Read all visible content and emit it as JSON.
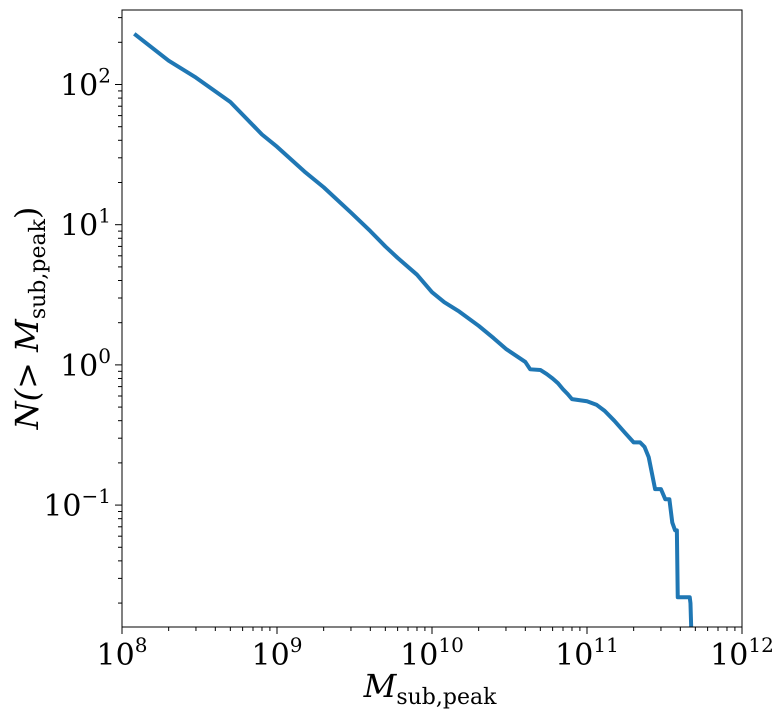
{
  "chart_data": {
    "type": "line",
    "xscale": "log",
    "yscale": "log",
    "xlabel": "M",
    "xlabel_sub": "sub,peak",
    "ylabel_prefix": "N(> M",
    "ylabel_sub": "sub,peak",
    "ylabel_suffix": ")",
    "xlim": [
      100000000.0,
      1000000000000.0
    ],
    "ylim": [
      0.0135,
      340
    ],
    "grid": false,
    "legend": "none",
    "series_color": "#1f77b4",
    "x_ticks": [
      {
        "value": 100000000.0,
        "base": "10",
        "exp": "8"
      },
      {
        "value": 1000000000.0,
        "base": "10",
        "exp": "9"
      },
      {
        "value": 10000000000.0,
        "base": "10",
        "exp": "10"
      },
      {
        "value": 100000000000.0,
        "base": "10",
        "exp": "11"
      },
      {
        "value": 1000000000000.0,
        "base": "10",
        "exp": "12"
      }
    ],
    "y_ticks": [
      {
        "value": 0.1,
        "base": "10",
        "exp": "−1"
      },
      {
        "value": 1,
        "base": "10",
        "exp": "0"
      },
      {
        "value": 10,
        "base": "10",
        "exp": "1"
      },
      {
        "value": 100,
        "base": "10",
        "exp": "2"
      }
    ],
    "series": [
      {
        "x": [
          120000000.0,
          200000000.0,
          300000000.0,
          500000000.0,
          800000000.0,
          1000000000.0,
          1500000000.0,
          2000000000.0,
          3000000000.0,
          4000000000.0,
          5000000000.0,
          6000000000.0,
          8000000000.0,
          10000000000.0,
          12000000000.0,
          15000000000.0,
          20000000000.0,
          25000000000.0,
          30000000000.0,
          40000000000.0,
          43000000000.0,
          50000000000.0,
          55000000000.0,
          60000000000.0,
          65000000000.0,
          70000000000.0,
          75000000000.0,
          80000000000.0,
          100000000000.0,
          115000000000.0,
          130000000000.0,
          150000000000.0,
          175000000000.0,
          200000000000.0,
          220000000000.0,
          235000000000.0,
          250000000000.0,
          275000000000.0,
          300000000000.0,
          320000000000.0,
          340000000000.0,
          355000000000.0,
          370000000000.0,
          380000000000.0,
          385000000000.0,
          430000000000.0,
          460000000000.0,
          465000000000.0,
          470000000000.0
        ],
        "y": [
          230,
          148,
          112,
          75,
          44,
          36,
          24,
          18.5,
          12.2,
          9.0,
          7.0,
          5.8,
          4.4,
          3.3,
          2.8,
          2.4,
          1.9,
          1.55,
          1.3,
          1.05,
          0.93,
          0.92,
          0.86,
          0.8,
          0.74,
          0.67,
          0.62,
          0.57,
          0.55,
          0.52,
          0.47,
          0.4,
          0.33,
          0.28,
          0.28,
          0.26,
          0.22,
          0.13,
          0.13,
          0.11,
          0.11,
          0.075,
          0.066,
          0.066,
          0.022,
          0.022,
          0.022,
          0.02,
          0.0135
        ]
      }
    ]
  }
}
